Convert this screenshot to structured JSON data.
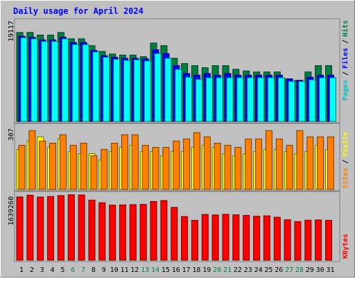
{
  "chart_data": [
    {
      "type": "bar",
      "title": "Daily usage for April 2024",
      "panel": "hits-files-pages",
      "ymax_label": "19117",
      "categories": [
        "1",
        "2",
        "3",
        "4",
        "5",
        "6",
        "7",
        "8",
        "9",
        "10",
        "11",
        "12",
        "13",
        "14",
        "15",
        "16",
        "17",
        "18",
        "19",
        "20",
        "21",
        "22",
        "23",
        "24",
        "25",
        "26",
        "27",
        "28",
        "29",
        "30",
        "31"
      ],
      "weekend_days": [
        "6",
        "7",
        "13",
        "14",
        "20",
        "21",
        "27",
        "28"
      ],
      "ylim": [
        0,
        19117
      ],
      "series": [
        {
          "name": "Hits",
          "color": "#008040",
          "values": [
            16900,
            16900,
            16400,
            16400,
            16900,
            15700,
            15700,
            14400,
            13300,
            12800,
            12600,
            12600,
            12300,
            14900,
            14400,
            12000,
            11000,
            10600,
            10200,
            10600,
            10600,
            9900,
            9600,
            9400,
            9400,
            9400,
            8100,
            7800,
            9400,
            10600,
            10600
          ]
        },
        {
          "name": "Files",
          "color": "#0000ff",
          "values": [
            16200,
            16000,
            15500,
            15500,
            16000,
            15000,
            15000,
            13500,
            12500,
            12200,
            12000,
            12000,
            11900,
            13600,
            12900,
            10600,
            9100,
            8800,
            9100,
            8800,
            9100,
            8800,
            8800,
            8800,
            8800,
            8800,
            8100,
            7800,
            8400,
            8800,
            8800
          ]
        },
        {
          "name": "Pages",
          "color": "#00ffff",
          "values": [
            15900,
            15700,
            15200,
            15200,
            15700,
            14600,
            14600,
            13200,
            12200,
            11800,
            11600,
            11700,
            11500,
            12900,
            12000,
            9900,
            8400,
            8000,
            8300,
            8300,
            8300,
            8300,
            8300,
            8300,
            8300,
            8300,
            7600,
            7600,
            7900,
            8300,
            8300
          ]
        }
      ],
      "legend": "right-vertical"
    },
    {
      "type": "bar",
      "panel": "visits-sites",
      "ymax_label": "307",
      "categories": [
        "1",
        "2",
        "3",
        "4",
        "5",
        "6",
        "7",
        "8",
        "9",
        "10",
        "11",
        "12",
        "13",
        "14",
        "15",
        "16",
        "17",
        "18",
        "19",
        "20",
        "21",
        "22",
        "23",
        "24",
        "25",
        "26",
        "27",
        "28",
        "29",
        "30",
        "31"
      ],
      "ylim": [
        0,
        307
      ],
      "series": [
        {
          "name": "Visits",
          "color": "#ffff00",
          "values": [
            190,
            230,
            250,
            200,
            240,
            180,
            170,
            170,
            140,
            180,
            200,
            210,
            180,
            180,
            160,
            180,
            180,
            200,
            210,
            200,
            170,
            160,
            170,
            180,
            190,
            190,
            180,
            170,
            180,
            210,
            190
          ]
        },
        {
          "name": "Sites",
          "color": "#ff8000",
          "values": [
            210,
            280,
            230,
            220,
            260,
            210,
            220,
            160,
            190,
            220,
            260,
            260,
            210,
            200,
            200,
            230,
            240,
            270,
            250,
            220,
            210,
            200,
            240,
            240,
            280,
            240,
            210,
            280,
            250,
            250,
            250
          ]
        }
      ],
      "legend": "right-vertical"
    },
    {
      "type": "bar",
      "panel": "kbytes",
      "ymax_label": "1639260",
      "categories": [
        "1",
        "2",
        "3",
        "4",
        "5",
        "6",
        "7",
        "8",
        "9",
        "10",
        "11",
        "12",
        "13",
        "14",
        "15",
        "16",
        "17",
        "18",
        "19",
        "20",
        "21",
        "22",
        "23",
        "24",
        "25",
        "26",
        "27",
        "28",
        "29",
        "30",
        "31"
      ],
      "ylim": [
        0,
        1639260
      ],
      "series": [
        {
          "name": "KBytes",
          "color": "#ff0000",
          "values": [
            1541000,
            1583000,
            1538000,
            1551000,
            1573000,
            1594000,
            1589000,
            1464000,
            1399000,
            1342000,
            1347000,
            1354000,
            1359000,
            1430000,
            1454000,
            1286000,
            1063000,
            971000,
            1114000,
            1102000,
            1117000,
            1106000,
            1092000,
            1071000,
            1080000,
            1046000,
            985000,
            940000,
            975000,
            980000,
            970000
          ]
        }
      ],
      "legend": "right-vertical"
    }
  ]
}
